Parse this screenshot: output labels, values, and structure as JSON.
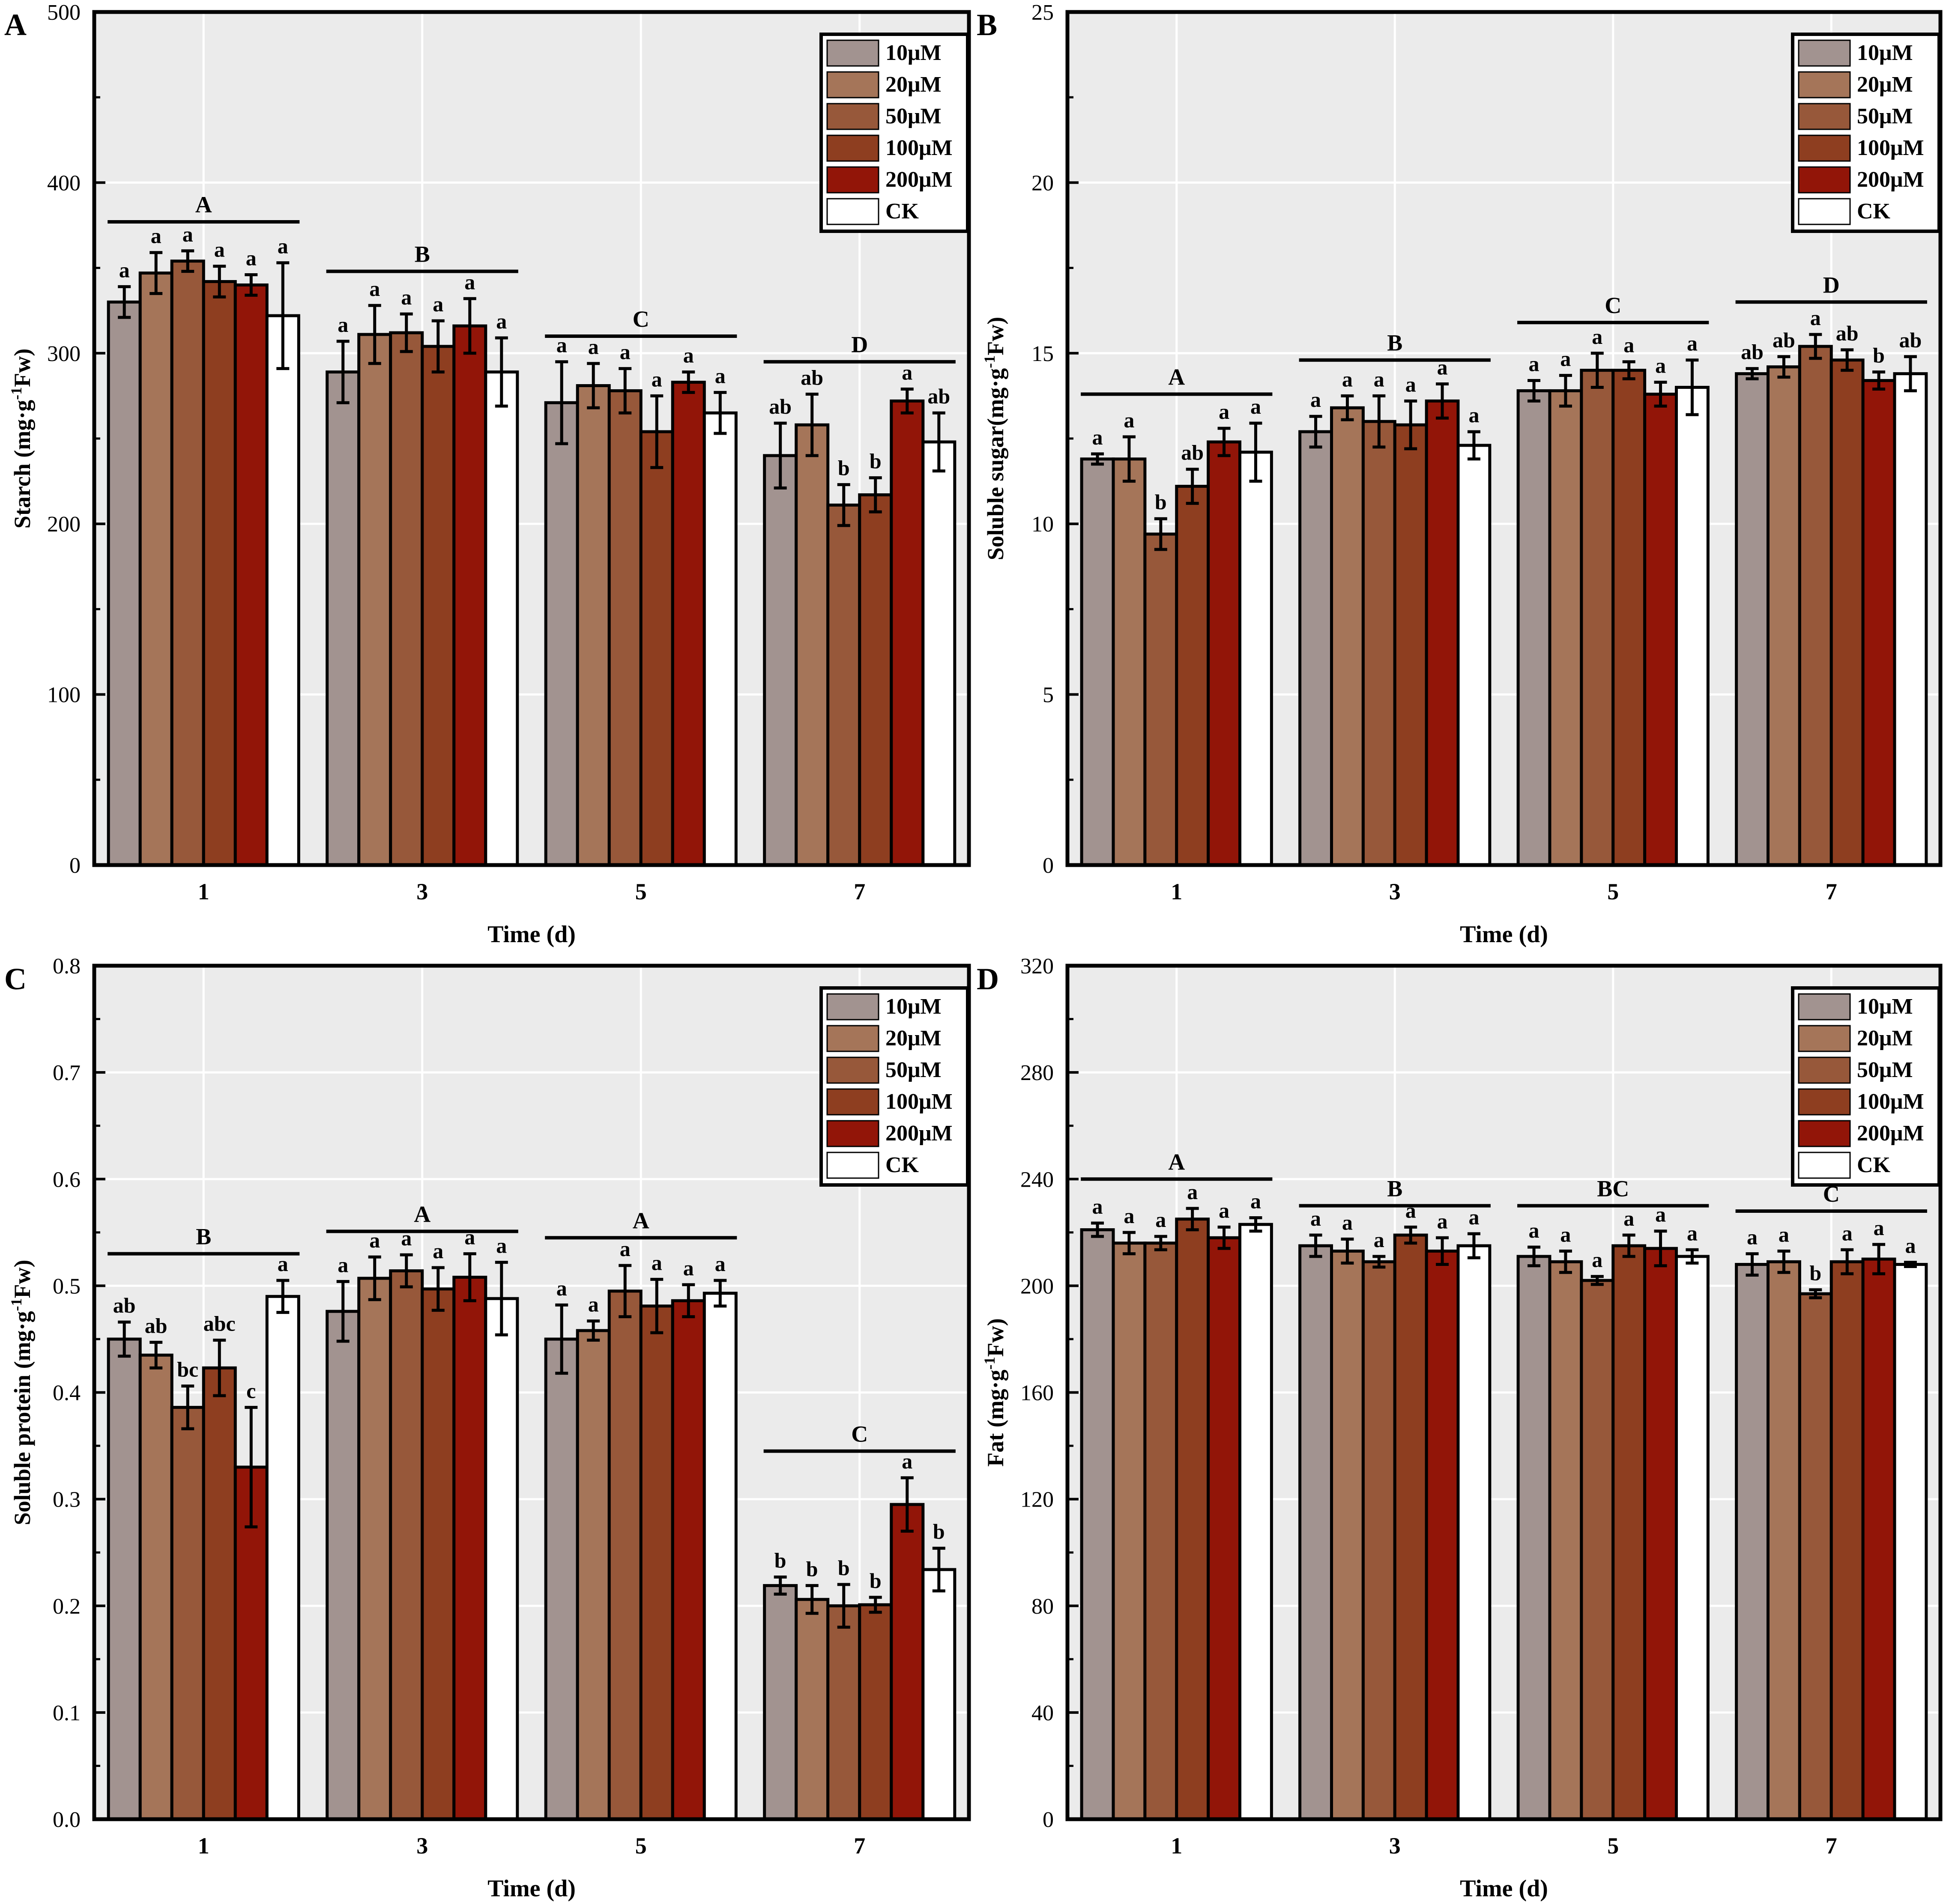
{
  "colors": {
    "10μM": "#a29390",
    "20μM": "#a57559",
    "50μM": "#97583a",
    "100μM": "#8e3e20",
    "200μM": "#921508",
    "CK": "#ffffff",
    "plot_bg": "#ebebeb",
    "grid": "#ffffff"
  },
  "chart_data": [
    {
      "panel": "A",
      "type": "bar",
      "xlabel": "Time (d)",
      "ylabel_parts": [
        "Starch (mg·g",
        "-1",
        "Fw)"
      ],
      "ylim": [
        0,
        500
      ],
      "yticks": [
        0,
        100,
        200,
        300,
        400,
        500
      ],
      "categories": [
        "1",
        "3",
        "5",
        "7"
      ],
      "legend": [
        "10μM",
        "20μM",
        "50μM",
        "100μM",
        "200μM",
        "CK"
      ],
      "series": [
        {
          "name": "10μM",
          "values": [
            330,
            289,
            271,
            240
          ],
          "errors": [
            9,
            18,
            24,
            19
          ],
          "letters": [
            "a",
            "a",
            "a",
            "ab"
          ]
        },
        {
          "name": "20μM",
          "values": [
            347,
            311,
            281,
            258
          ],
          "errors": [
            12,
            17,
            13,
            18
          ],
          "letters": [
            "a",
            "a",
            "a",
            "ab"
          ]
        },
        {
          "name": "50μM",
          "values": [
            354,
            312,
            278,
            211
          ],
          "errors": [
            6,
            11,
            13,
            12
          ],
          "letters": [
            "a",
            "a",
            "a",
            "b"
          ]
        },
        {
          "name": "100μM",
          "values": [
            342,
            304,
            254,
            217
          ],
          "errors": [
            9,
            15,
            21,
            10
          ],
          "letters": [
            "a",
            "a",
            "a",
            "b"
          ]
        },
        {
          "name": "200μM",
          "values": [
            340,
            316,
            283,
            272
          ],
          "errors": [
            6,
            16,
            6,
            7
          ],
          "letters": [
            "a",
            "a",
            "a",
            "a"
          ]
        },
        {
          "name": "CK",
          "values": [
            322,
            289,
            265,
            248
          ],
          "errors": [
            31,
            20,
            12,
            17
          ],
          "letters": [
            "a",
            "a",
            "a",
            "ab"
          ]
        }
      ],
      "group_letters": [
        "A",
        "B",
        "C",
        "D"
      ],
      "group_line_values": [
        377,
        348,
        310,
        295
      ]
    },
    {
      "panel": "B",
      "type": "bar",
      "xlabel": "Time (d)",
      "ylabel_parts": [
        "Soluble sugar(mg·g",
        "-1",
        "Fw)"
      ],
      "ylim": [
        0,
        25
      ],
      "yticks": [
        0,
        5,
        10,
        15,
        20,
        25
      ],
      "categories": [
        "1",
        "3",
        "5",
        "7"
      ],
      "legend": [
        "10μM",
        "20μM",
        "50μM",
        "100μM",
        "200μM",
        "CK"
      ],
      "series": [
        {
          "name": "10μM",
          "values": [
            11.9,
            12.7,
            13.9,
            14.4
          ],
          "errors": [
            0.15,
            0.45,
            0.3,
            0.15
          ],
          "letters": [
            "a",
            "a",
            "a",
            "ab"
          ]
        },
        {
          "name": "20μM",
          "values": [
            11.9,
            13.4,
            13.9,
            14.6
          ],
          "errors": [
            0.65,
            0.35,
            0.45,
            0.3
          ],
          "letters": [
            "a",
            "a",
            "a",
            "ab"
          ]
        },
        {
          "name": "50μM",
          "values": [
            9.7,
            13.0,
            14.5,
            15.2
          ],
          "errors": [
            0.45,
            0.75,
            0.5,
            0.35
          ],
          "letters": [
            "b",
            "a",
            "a",
            "a"
          ]
        },
        {
          "name": "100μM",
          "values": [
            11.1,
            12.9,
            14.5,
            14.8
          ],
          "errors": [
            0.5,
            0.7,
            0.25,
            0.3
          ],
          "letters": [
            "ab",
            "a",
            "a",
            "ab"
          ]
        },
        {
          "name": "200μM",
          "values": [
            12.4,
            13.6,
            13.8,
            14.2
          ],
          "errors": [
            0.4,
            0.5,
            0.35,
            0.25
          ],
          "letters": [
            "a",
            "a",
            "a",
            "b"
          ]
        },
        {
          "name": "CK",
          "values": [
            12.1,
            12.3,
            14.0,
            14.4
          ],
          "errors": [
            0.85,
            0.4,
            0.8,
            0.5
          ],
          "letters": [
            "a",
            "a",
            "a",
            "ab"
          ]
        }
      ],
      "group_letters": [
        "A",
        "B",
        "C",
        "D"
      ],
      "group_line_values": [
        13.8,
        14.8,
        15.9,
        16.5
      ]
    },
    {
      "panel": "C",
      "type": "bar",
      "xlabel": "Time (d)",
      "ylabel_parts": [
        "Soluble protein (mg·g",
        "-1",
        "Fw)"
      ],
      "ylim": [
        0,
        0.8
      ],
      "yticks": [
        0.0,
        0.1,
        0.2,
        0.3,
        0.4,
        0.5,
        0.6,
        0.7,
        0.8
      ],
      "ytick_labels": [
        "0.0",
        "0.1",
        "0.2",
        "0.3",
        "0.4",
        "0.5",
        "0.6",
        "0.7",
        "0.8"
      ],
      "categories": [
        "1",
        "3",
        "5",
        "7"
      ],
      "legend": [
        "10μM",
        "20μM",
        "50μM",
        "100μM",
        "200μM",
        "CK"
      ],
      "series": [
        {
          "name": "10μM",
          "values": [
            0.45,
            0.476,
            0.45,
            0.219
          ],
          "errors": [
            0.016,
            0.028,
            0.032,
            0.008
          ],
          "letters": [
            "ab",
            "a",
            "a",
            "b"
          ]
        },
        {
          "name": "20μM",
          "values": [
            0.435,
            0.507,
            0.458,
            0.206
          ],
          "errors": [
            0.012,
            0.02,
            0.009,
            0.013
          ],
          "letters": [
            "ab",
            "a",
            "a",
            "b"
          ]
        },
        {
          "name": "50μM",
          "values": [
            0.386,
            0.514,
            0.495,
            0.2
          ],
          "errors": [
            0.02,
            0.015,
            0.024,
            0.02
          ],
          "letters": [
            "bc",
            "a",
            "a",
            "b"
          ]
        },
        {
          "name": "100μM",
          "values": [
            0.423,
            0.497,
            0.481,
            0.201
          ],
          "errors": [
            0.026,
            0.02,
            0.025,
            0.007
          ],
          "letters": [
            "abc",
            "a",
            "a",
            "b"
          ]
        },
        {
          "name": "200μM",
          "values": [
            0.33,
            0.508,
            0.486,
            0.295
          ],
          "errors": [
            0.056,
            0.022,
            0.015,
            0.025
          ],
          "letters": [
            "c",
            "a",
            "a",
            "a"
          ]
        },
        {
          "name": "CK",
          "values": [
            0.49,
            0.488,
            0.493,
            0.234
          ],
          "errors": [
            0.015,
            0.034,
            0.012,
            0.02
          ],
          "letters": [
            "a",
            "a",
            "a",
            "b"
          ]
        }
      ],
      "group_letters": [
        "B",
        "A",
        "A",
        "C"
      ],
      "group_line_values": [
        0.53,
        0.551,
        0.545,
        0.345
      ]
    },
    {
      "panel": "D",
      "type": "bar",
      "xlabel": "Time (d)",
      "ylabel_parts": [
        "Fat (mg·g",
        "-1",
        "Fw)"
      ],
      "ylim": [
        0,
        320
      ],
      "yticks": [
        0,
        40,
        80,
        120,
        160,
        200,
        240,
        280,
        320
      ],
      "categories": [
        "1",
        "3",
        "5",
        "7"
      ],
      "legend": [
        "10μM",
        "20μM",
        "50μM",
        "100μM",
        "200μM",
        "CK"
      ],
      "series": [
        {
          "name": "10μM",
          "values": [
            221,
            215,
            211,
            208
          ],
          "errors": [
            2.5,
            4,
            3.5,
            4
          ],
          "letters": [
            "a",
            "a",
            "a",
            "a"
          ]
        },
        {
          "name": "20μM",
          "values": [
            216,
            213,
            209,
            209
          ],
          "errors": [
            4,
            4.5,
            4,
            4
          ],
          "letters": [
            "a",
            "a",
            "a",
            "a"
          ]
        },
        {
          "name": "50μM",
          "values": [
            216,
            209,
            202,
            197
          ],
          "errors": [
            2.5,
            2,
            1.5,
            1.5
          ],
          "letters": [
            "a",
            "a",
            "a",
            "b"
          ]
        },
        {
          "name": "100μM",
          "values": [
            225,
            219,
            215,
            209
          ],
          "errors": [
            4,
            3,
            4,
            4.5
          ],
          "letters": [
            "a",
            "a",
            "a",
            "a"
          ]
        },
        {
          "name": "200μM",
          "values": [
            218,
            213,
            214,
            210
          ],
          "errors": [
            4,
            5,
            6.5,
            5.5
          ],
          "letters": [
            "a",
            "a",
            "a",
            "a"
          ]
        },
        {
          "name": "CK",
          "values": [
            223,
            215,
            211,
            208
          ],
          "errors": [
            2.5,
            4.5,
            2.5,
            0.8
          ],
          "letters": [
            "a",
            "a",
            "a",
            "a"
          ]
        }
      ],
      "group_letters": [
        "A",
        "B",
        "BC",
        "C"
      ],
      "group_line_values": [
        240,
        230,
        230,
        228
      ]
    }
  ]
}
